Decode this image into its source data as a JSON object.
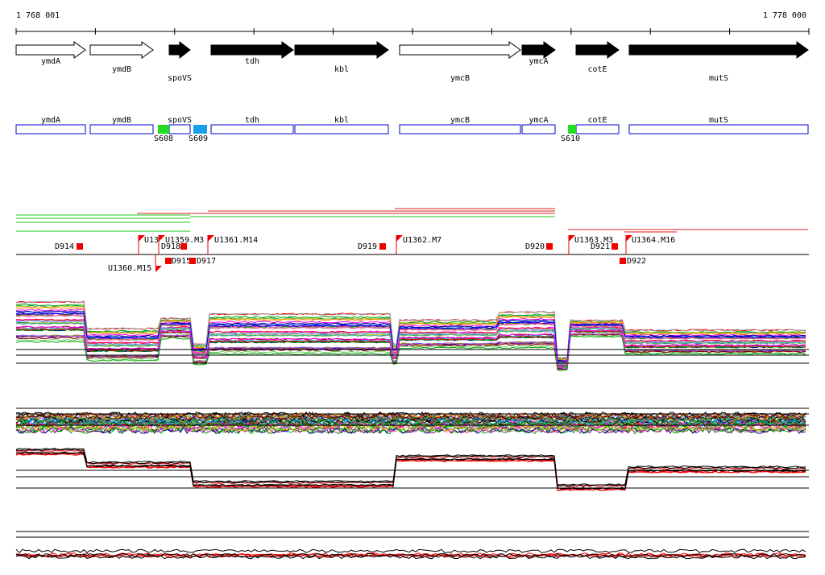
{
  "ruler": {
    "start": "1 768 001",
    "end": "1 778 000"
  },
  "genes": [
    {
      "label": "ymdA"
    },
    {
      "label": "ymdB"
    },
    {
      "label": "spoVS"
    },
    {
      "label": "tdh"
    },
    {
      "label": "kbl"
    },
    {
      "label": "ymcB"
    },
    {
      "label": "ymcA"
    },
    {
      "label": "cotE"
    },
    {
      "label": "mutS"
    }
  ],
  "segments": [
    {
      "label": "S608"
    },
    {
      "label": "S609"
    },
    {
      "label": "S610"
    }
  ],
  "features": [
    {
      "label": "D914"
    },
    {
      "label": "U1360.M15"
    },
    {
      "label": "U13"
    },
    {
      "label": "U1359.M3"
    },
    {
      "label": "D918"
    },
    {
      "label": "D915"
    },
    {
      "label": "D917"
    },
    {
      "label": "U1361.M14"
    },
    {
      "label": "D919"
    },
    {
      "label": "U1362.M7"
    },
    {
      "label": "D920"
    },
    {
      "label": "U1363.M3"
    },
    {
      "label": "D921"
    },
    {
      "label": "D922"
    },
    {
      "label": "U1364.M16"
    }
  ]
}
